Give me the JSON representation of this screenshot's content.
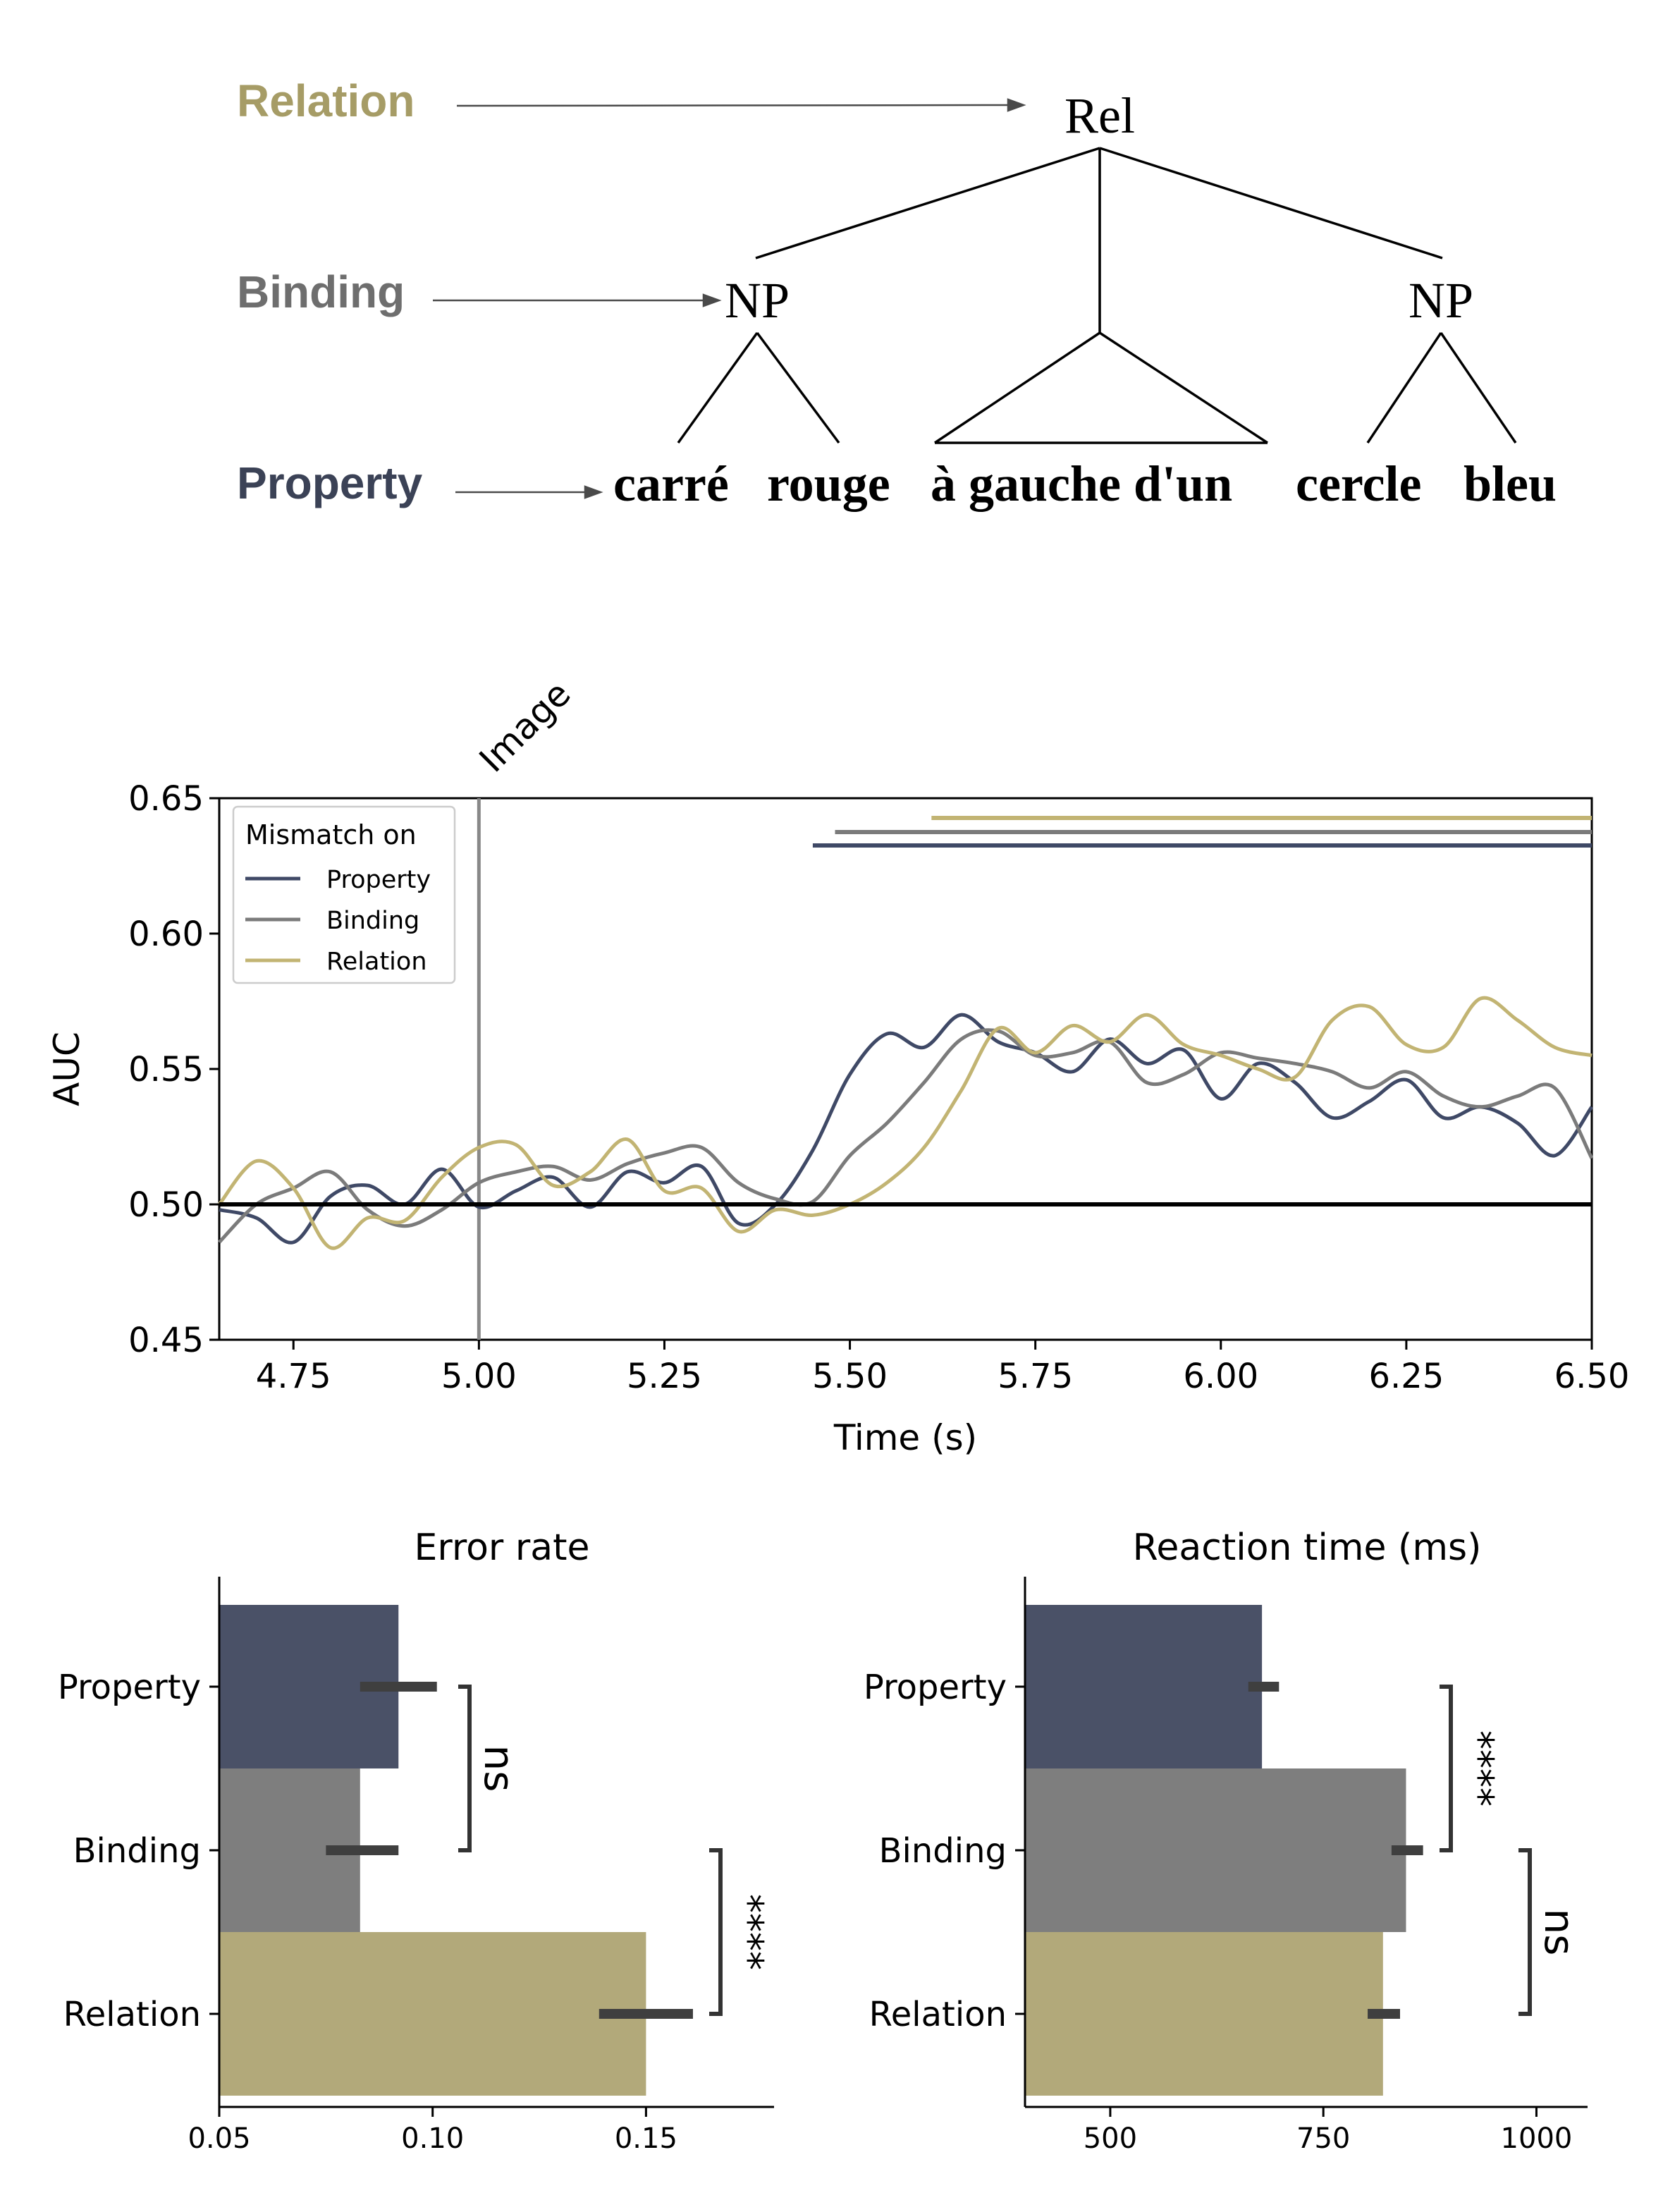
{
  "tree": {
    "levels": [
      {
        "label": "Relation",
        "color": "#a69c66"
      },
      {
        "label": "Binding",
        "color": "#6e6e6e"
      },
      {
        "label": "Property",
        "color": "#3b4256"
      }
    ],
    "nodes": {
      "rel": "Rel",
      "np_left": "NP",
      "np_right": "NP"
    },
    "words": [
      "carré",
      "rouge",
      "à gauche d'un",
      "cercle",
      "bleu"
    ]
  },
  "colors": {
    "property": "#3f4966",
    "binding": "#7b7b7b",
    "relation": "#c2b473",
    "bar_property": "#4a5167",
    "bar_binding": "#7e7e7e",
    "bar_relation": "#b2a97a"
  },
  "chart_data": [
    {
      "type": "line",
      "title": "",
      "xlabel": "Time (s)",
      "ylabel": "AUC",
      "xlim": [
        4.65,
        6.5
      ],
      "ylim": [
        0.45,
        0.65
      ],
      "xticks": [
        "4.75",
        "5.00",
        "5.25",
        "5.50",
        "5.75",
        "6.00",
        "6.25",
        "6.50"
      ],
      "yticks": [
        "0.45",
        "0.50",
        "0.55",
        "0.60",
        "0.65"
      ],
      "legend": {
        "title": "Mismatch on",
        "position": "top-left",
        "entries": [
          "Property",
          "Binding",
          "Relation"
        ]
      },
      "vline": {
        "x": 5.0,
        "label": "Image"
      },
      "hline": 0.5,
      "significance_bars": [
        {
          "series": "Relation",
          "start": 5.61,
          "end": 6.5
        },
        {
          "series": "Binding",
          "start": 5.48,
          "end": 6.5
        },
        {
          "series": "Property",
          "start": 5.45,
          "end": 6.5
        }
      ],
      "x": [
        4.65,
        4.7,
        4.75,
        4.8,
        4.85,
        4.9,
        4.95,
        5.0,
        5.05,
        5.1,
        5.15,
        5.2,
        5.25,
        5.3,
        5.35,
        5.4,
        5.45,
        5.5,
        5.55,
        5.6,
        5.65,
        5.7,
        5.75,
        5.8,
        5.85,
        5.9,
        5.95,
        6.0,
        6.05,
        6.1,
        6.15,
        6.2,
        6.25,
        6.3,
        6.35,
        6.4,
        6.45,
        6.5
      ],
      "series": [
        {
          "name": "Property",
          "values": [
            0.498,
            0.495,
            0.486,
            0.503,
            0.507,
            0.5,
            0.513,
            0.499,
            0.505,
            0.51,
            0.499,
            0.512,
            0.508,
            0.514,
            0.493,
            0.5,
            0.52,
            0.548,
            0.563,
            0.558,
            0.57,
            0.56,
            0.556,
            0.549,
            0.561,
            0.552,
            0.557,
            0.539,
            0.552,
            0.545,
            0.532,
            0.538,
            0.546,
            0.532,
            0.536,
            0.53,
            0.518,
            0.536
          ]
        },
        {
          "name": "Binding",
          "values": [
            0.486,
            0.5,
            0.506,
            0.512,
            0.498,
            0.492,
            0.498,
            0.508,
            0.512,
            0.514,
            0.509,
            0.515,
            0.519,
            0.521,
            0.508,
            0.502,
            0.501,
            0.518,
            0.53,
            0.545,
            0.561,
            0.564,
            0.555,
            0.556,
            0.56,
            0.545,
            0.548,
            0.556,
            0.554,
            0.552,
            0.549,
            0.543,
            0.549,
            0.54,
            0.536,
            0.54,
            0.543,
            0.517
          ]
        },
        {
          "name": "Relation",
          "values": [
            0.5,
            0.516,
            0.506,
            0.484,
            0.495,
            0.494,
            0.51,
            0.521,
            0.522,
            0.507,
            0.512,
            0.524,
            0.505,
            0.506,
            0.49,
            0.498,
            0.496,
            0.5,
            0.508,
            0.521,
            0.542,
            0.565,
            0.556,
            0.566,
            0.56,
            0.57,
            0.559,
            0.555,
            0.55,
            0.547,
            0.568,
            0.573,
            0.559,
            0.558,
            0.576,
            0.568,
            0.558,
            0.555
          ]
        }
      ]
    },
    {
      "type": "bar",
      "orientation": "horizontal",
      "title": "Error rate",
      "categories": [
        "Property",
        "Binding",
        "Relation"
      ],
      "values": [
        0.092,
        0.083,
        0.15
      ],
      "errors": [
        [
          0.083,
          0.101
        ],
        [
          0.075,
          0.092
        ],
        [
          0.139,
          0.161
        ]
      ],
      "xlim": [
        0.05,
        0.18
      ],
      "xticks": [
        "0.05",
        "0.10",
        "0.15"
      ],
      "significance": [
        {
          "pair": [
            "Property",
            "Binding"
          ],
          "label": "ns"
        },
        {
          "pair": [
            "Binding",
            "Relation"
          ],
          "label": "****"
        }
      ]
    },
    {
      "type": "bar",
      "orientation": "horizontal",
      "title": "Reaction time (ms)",
      "categories": [
        "Property",
        "Binding",
        "Relation"
      ],
      "values": [
        678,
        847,
        820
      ],
      "errors": [
        [
          662,
          698
        ],
        [
          830,
          867
        ],
        [
          802,
          840
        ]
      ],
      "xlim": [
        400,
        1060
      ],
      "xticks": [
        "500",
        "750",
        "1000"
      ],
      "significance": [
        {
          "pair": [
            "Property",
            "Binding"
          ],
          "label": "****"
        },
        {
          "pair": [
            "Binding",
            "Relation"
          ],
          "label": "ns"
        }
      ]
    }
  ]
}
